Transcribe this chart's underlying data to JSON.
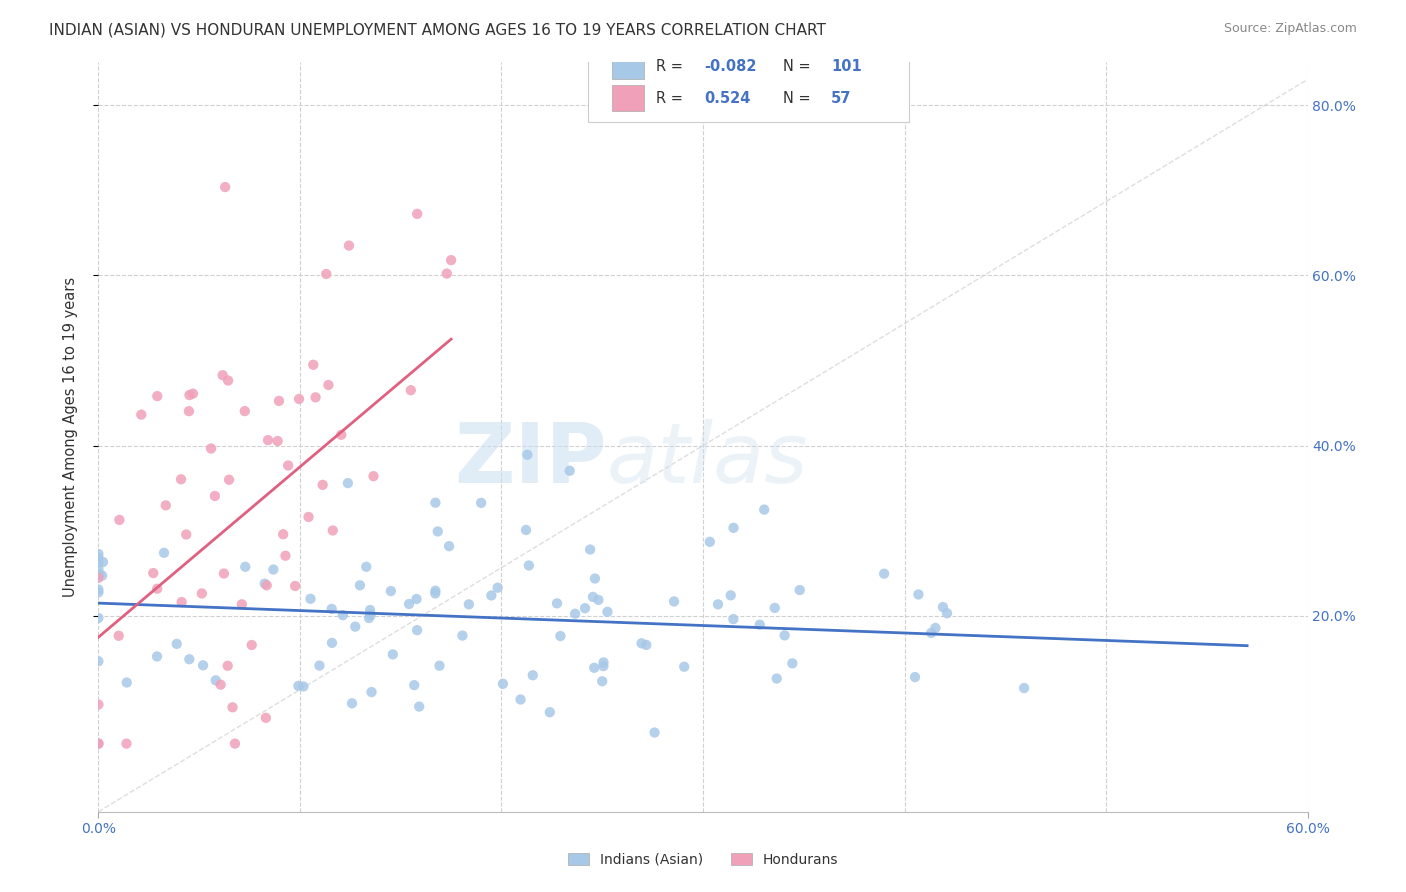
{
  "title": "INDIAN (ASIAN) VS HONDURAN UNEMPLOYMENT AMONG AGES 16 TO 19 YEARS CORRELATION CHART",
  "source": "Source: ZipAtlas.com",
  "ylabel": "Unemployment Among Ages 16 to 19 years",
  "xlim": [
    0.0,
    0.6
  ],
  "ylim": [
    -0.03,
    0.85
  ],
  "xtick_positions": [
    0.0,
    0.6
  ],
  "xtick_labels": [
    "0.0%",
    "60.0%"
  ],
  "yticks": [
    0.2,
    0.4,
    0.6,
    0.8
  ],
  "ytick_labels": [
    "20.0%",
    "40.0%",
    "60.0%",
    "80.0%"
  ],
  "grid_yticks": [
    0.2,
    0.4,
    0.6,
    0.8
  ],
  "grid_xticks": [
    0.0,
    0.1,
    0.2,
    0.3,
    0.4,
    0.5,
    0.6
  ],
  "R_asian": -0.082,
  "N_asian": 101,
  "R_honduran": 0.524,
  "N_honduran": 57,
  "color_asian": "#a8c8e8",
  "color_honduran": "#f0a0b8",
  "color_asian_line": "#4472c4",
  "color_honduran_line": "#e06080",
  "color_text_blue": "#4472c4",
  "color_text_dark": "#333333",
  "color_grid": "#d0d0d0",
  "color_diag": "#d0d0d0",
  "watermark_zip": "ZIP",
  "watermark_atlas": "atlas",
  "legend_label_asian": "Indians (Asian)",
  "legend_label_honduran": "Hondurans",
  "asian_trend_x0": 0.0,
  "asian_trend_y0": 0.215,
  "asian_trend_x1": 0.57,
  "asian_trend_y1": 0.165,
  "honduran_trend_x0": 0.0,
  "honduran_trend_y0": 0.175,
  "honduran_trend_x1": 0.175,
  "honduran_trend_y1": 0.525
}
